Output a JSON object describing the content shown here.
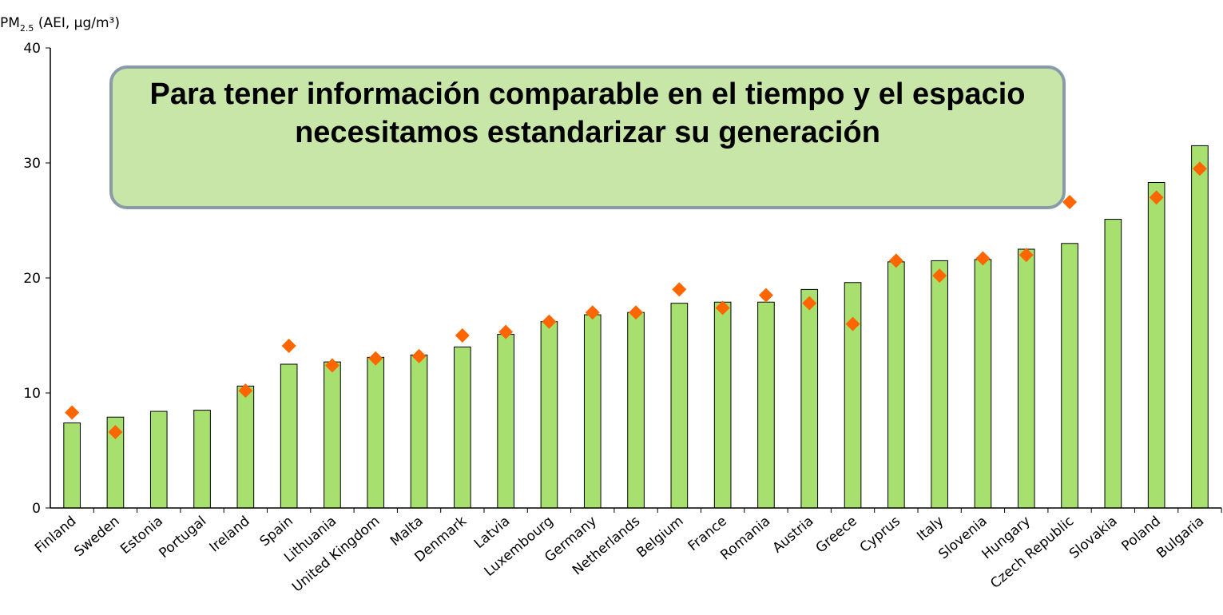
{
  "chart_data": {
    "type": "bar",
    "y_label": {
      "main": "PM",
      "sub": "2.5",
      "rest": " (AEI, µg/m³)"
    },
    "annotation": "Para tener información comparable en el tiempo y el espacio necesitamos estandarizar su generación",
    "categories": [
      "Finland",
      "Sweden",
      "Estonia",
      "Portugal",
      "Ireland",
      "Spain",
      "Lithuania",
      "United Kingdom",
      "Malta",
      "Denmark",
      "Latvia",
      "Luxembourg",
      "Germany",
      "Netherlands",
      "Belgium",
      "France",
      "Romania",
      "Austria",
      "Greece",
      "Cyprus",
      "Italy",
      "Slovenia",
      "Hungary",
      "Czech Republic",
      "Slovakia",
      "Poland",
      "Bulgaria"
    ],
    "series": [
      {
        "type": "bar",
        "color": "#a8e070",
        "values": [
          7.4,
          7.9,
          8.4,
          8.5,
          10.6,
          12.5,
          12.7,
          13.1,
          13.3,
          14.0,
          15.1,
          16.2,
          16.8,
          17.0,
          17.8,
          17.9,
          17.9,
          19.0,
          19.6,
          21.4,
          21.5,
          21.6,
          22.5,
          23.0,
          25.1,
          28.3,
          31.5
        ]
      },
      {
        "type": "scatter",
        "color": "#ff6600",
        "values": [
          8.3,
          6.6,
          null,
          null,
          10.2,
          14.1,
          12.4,
          13.0,
          13.2,
          15.0,
          15.3,
          16.2,
          17.0,
          17.0,
          19.0,
          17.4,
          18.5,
          17.8,
          16.0,
          21.5,
          20.2,
          21.7,
          22.0,
          26.6,
          null,
          27.0,
          29.5
        ]
      }
    ],
    "ylim": [
      0,
      40
    ],
    "yticks": [
      0,
      10,
      20,
      30,
      40
    ]
  }
}
